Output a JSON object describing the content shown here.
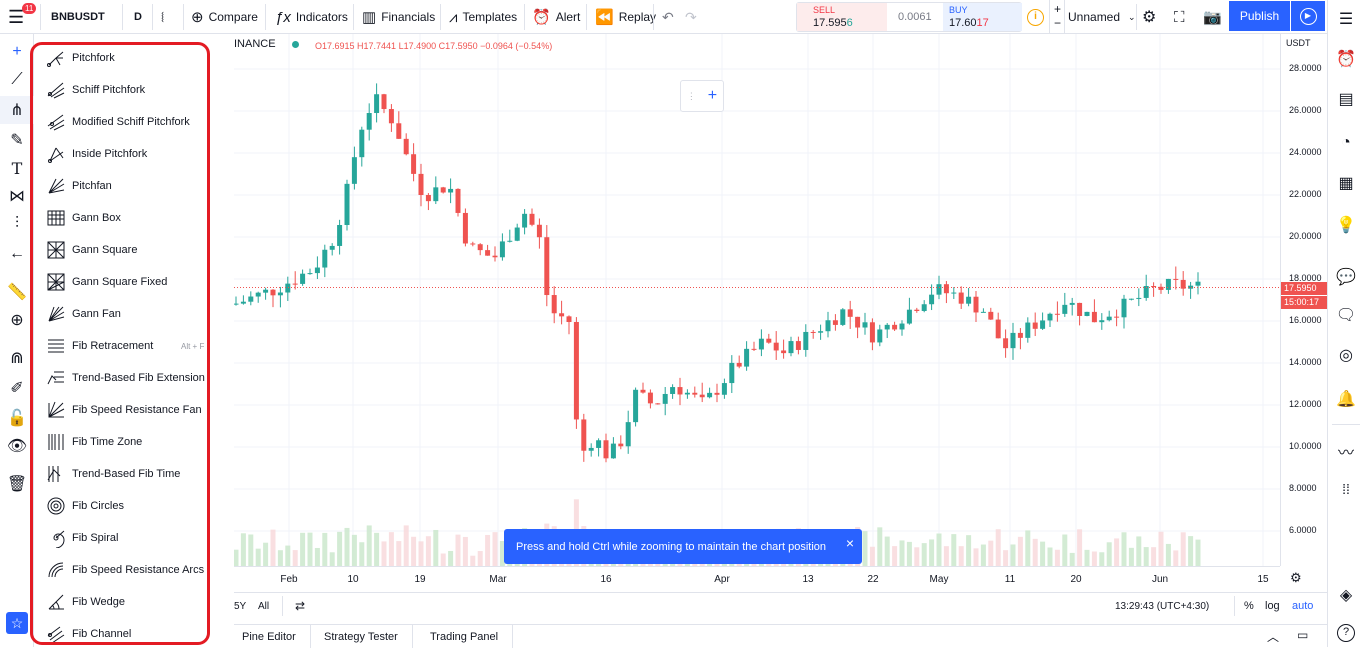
{
  "header": {
    "notif_count": "11",
    "symbol": "BNBUSDT",
    "interval": "D",
    "compare": "Compare",
    "indicators": "Indicators",
    "financials": "Financials",
    "templates": "Templates",
    "alert": "Alert",
    "replay": "Replay",
    "sell_label": "SELL",
    "sell_price_a": "17.595",
    "sell_price_b": "6",
    "spread": "0.0061",
    "buy_label": "BUY",
    "buy_price_a": "17.60",
    "buy_price_b": "17",
    "layout_name": "Unnamed",
    "publish": "Publish"
  },
  "legend": {
    "exchange": "INANCE",
    "ohlc": "O17.6915 H17.7441 L17.4900 C17.5950 −0.0964 (−0.54%)"
  },
  "menu": {
    "items": [
      {
        "label": "Pitchfork",
        "icon": "pitchfork-icon"
      },
      {
        "label": "Schiff Pitchfork",
        "icon": "schiff-pitchfork-icon"
      },
      {
        "label": "Modified Schiff Pitchfork",
        "icon": "modified-schiff-pitchfork-icon"
      },
      {
        "label": "Inside Pitchfork",
        "icon": "inside-pitchfork-icon"
      },
      {
        "label": "Pitchfan",
        "icon": "pitchfan-icon"
      },
      {
        "label": "Gann Box",
        "icon": "gann-box-icon"
      },
      {
        "label": "Gann Square",
        "icon": "gann-square-icon"
      },
      {
        "label": "Gann Square Fixed",
        "icon": "gann-square-fixed-icon"
      },
      {
        "label": "Gann Fan",
        "icon": "gann-fan-icon"
      },
      {
        "label": "Fib Retracement",
        "icon": "fib-retracement-icon",
        "shortcut": "Alt + F"
      },
      {
        "label": "Trend-Based Fib Extension",
        "icon": "trend-fib-extension-icon"
      },
      {
        "label": "Fib Speed Resistance Fan",
        "icon": "fib-speed-fan-icon"
      },
      {
        "label": "Fib Time Zone",
        "icon": "fib-time-zone-icon"
      },
      {
        "label": "Trend-Based Fib Time",
        "icon": "trend-fib-time-icon"
      },
      {
        "label": "Fib Circles",
        "icon": "fib-circles-icon"
      },
      {
        "label": "Fib Spiral",
        "icon": "fib-spiral-icon"
      },
      {
        "label": "Fib Speed Resistance Arcs",
        "icon": "fib-arcs-icon"
      },
      {
        "label": "Fib Wedge",
        "icon": "fib-wedge-icon"
      },
      {
        "label": "Fib Channel",
        "icon": "fib-channel-icon"
      }
    ]
  },
  "chart_data": {
    "type": "candlestick",
    "currency": "USDT",
    "ylim": [
      5,
      29
    ],
    "price_ticks": [
      "28.0000",
      "26.0000",
      "24.0000",
      "22.0000",
      "20.0000",
      "18.0000",
      "16.0000",
      "14.0000",
      "12.0000",
      "10.0000",
      "8.0000",
      "6.0000"
    ],
    "last_price": "17.5950",
    "countdown": "15:00:17",
    "time_ticks": [
      "Feb",
      "10",
      "19",
      "Mar",
      "16",
      "Apr",
      "13",
      "22",
      "May",
      "11",
      "20",
      "Jun",
      "15"
    ],
    "colors": {
      "up": "#26a69a",
      "down": "#ef5350"
    }
  },
  "bottom": {
    "range_5y": "5Y",
    "range_all": "All",
    "clock": "13:29:43 (UTC+4:30)",
    "percent": "%",
    "log": "log",
    "auto": "auto"
  },
  "panels": {
    "pine": "Pine Editor",
    "strategy": "Strategy Tester",
    "trading": "Trading Panel"
  },
  "toast": {
    "text": "Press and hold Ctrl while zooming to maintain the chart position"
  }
}
